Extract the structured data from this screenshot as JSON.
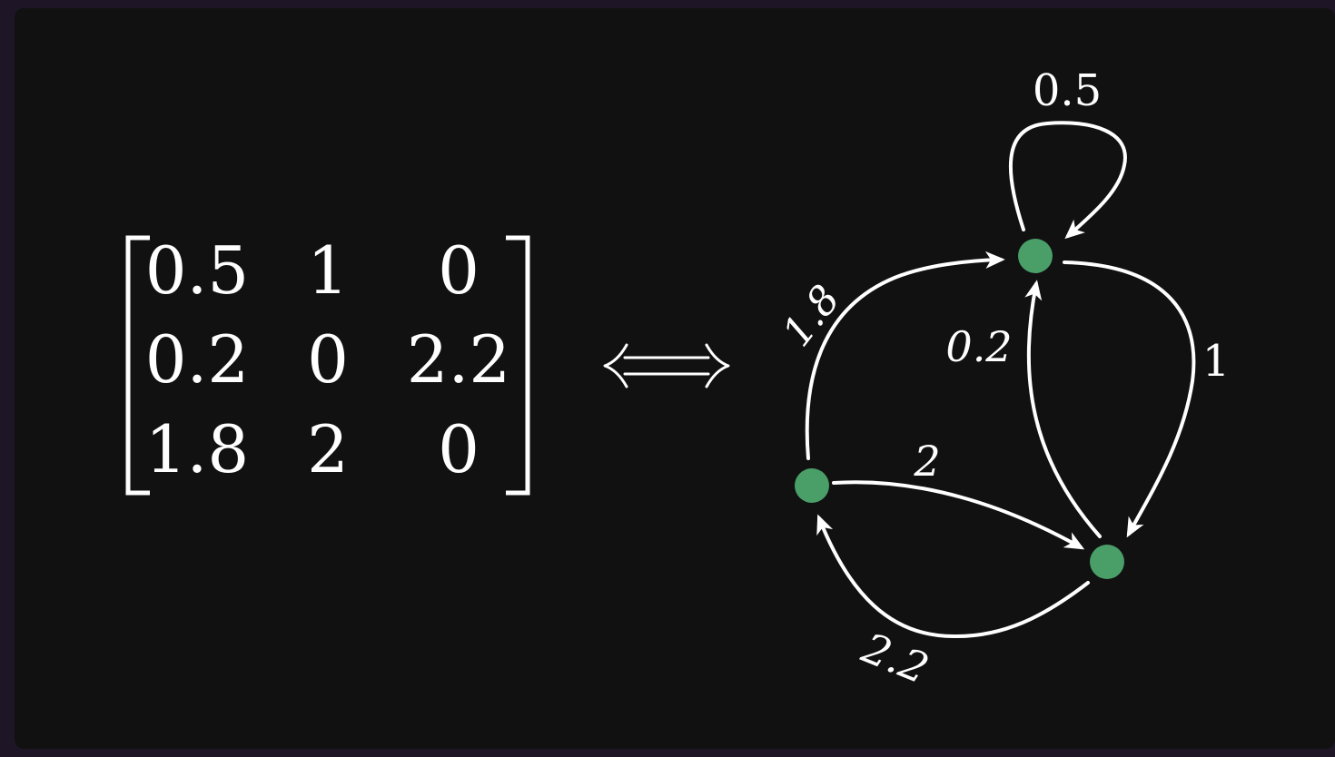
{
  "matrix": {
    "rows": [
      [
        "0.5",
        "1",
        "0"
      ],
      [
        "0.2",
        "0",
        "2.2"
      ],
      [
        "1.8",
        "2",
        "0"
      ]
    ]
  },
  "equivalence_symbol": "⟺",
  "graph": {
    "node_color": "#4a9e68",
    "edge_color": "#ffffff",
    "nodes": [
      {
        "id": "node-1"
      },
      {
        "id": "node-2"
      },
      {
        "id": "node-3"
      }
    ],
    "edges": [
      {
        "from": "node-1",
        "to": "node-1",
        "label": "0.5"
      },
      {
        "from": "node-1",
        "to": "node-2",
        "label": "1"
      },
      {
        "from": "node-2",
        "to": "node-1",
        "label": "0.2"
      },
      {
        "from": "node-2",
        "to": "node-3",
        "label": "2.2"
      },
      {
        "from": "node-3",
        "to": "node-1",
        "label": "1.8"
      },
      {
        "from": "node-3",
        "to": "node-2",
        "label": "2"
      }
    ]
  }
}
